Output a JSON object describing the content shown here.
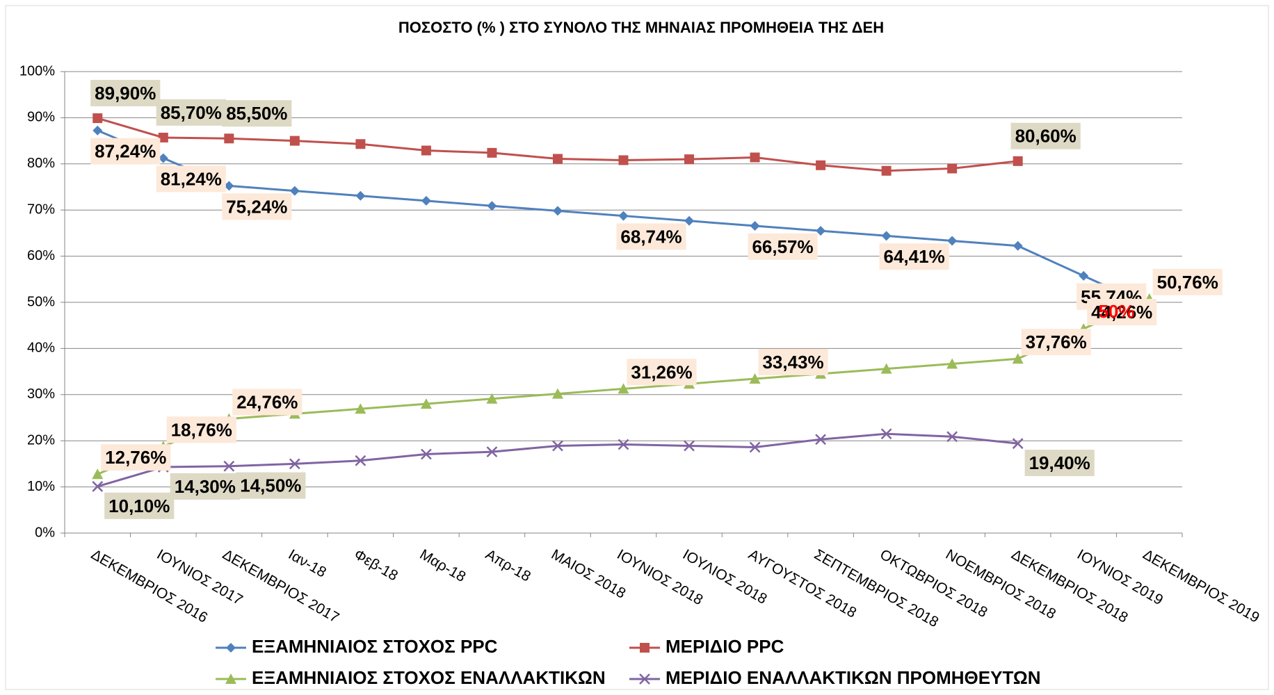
{
  "chart_data": {
    "type": "line",
    "title": "ΠΟΣΟΣΤΟ (% )  ΣΤΟ ΣΥΝΟΛΟ ΤΗΣ ΜΗΝΑΙΑΣ ΠΡΟΜΗΘΕΙΑ ΤΗΣ ΔΕΗ",
    "categories": [
      "ΔΕΚΕΜΒΡΙΟΣ 2016",
      "ΙΟΥΝΙΟΣ 2017",
      "ΔΕΚΕΜΒΡΙΟΣ 2017",
      "Ιαν-18",
      "Φεβ-18",
      "Μαρ-18",
      "Απρ-18",
      "ΜΑΙΟΣ 2018",
      "ΙΟΥΝΙΟΣ 2018",
      "ΙΟΥΛΙΟΣ 2018",
      "ΑΥΓΟΥΣΤΟΣ 2018",
      "ΣΕΠΤΕΜΒΡΙΟΣ 2018",
      "ΟΚΤΩΒΡΙΟΣ 2018",
      "ΝΟΕΜΒΡΙΟΣ 2018",
      "ΔΕΚΕΜΒΡΙΟΣ 2018",
      "ΙΟΥΝΙΟΣ 2019",
      "ΔΕΚΕΜΒΡΙΟΣ 2019"
    ],
    "series": [
      {
        "name": "ΕΞΑΜΗΝΙΑΙΟΣ ΣΤΟΧΟΣ PPC",
        "color": "#4f81bd",
        "marker": "diamond",
        "values": [
          87.24,
          81.24,
          75.24,
          74.16,
          73.08,
          72.0,
          70.9,
          69.82,
          68.74,
          67.65,
          66.57,
          65.49,
          64.41,
          63.32,
          62.24,
          55.74,
          49.24
        ],
        "value_labels": [
          "87,24%",
          "81,24%",
          "75,24%",
          null,
          null,
          null,
          null,
          null,
          "68,74%",
          null,
          "66,57%",
          null,
          "64,41%",
          null,
          null,
          "55,74%",
          null
        ]
      },
      {
        "name": "ΜΕΡΙΔΙΟ PPC",
        "color": "#c0504d",
        "marker": "square",
        "values": [
          89.9,
          85.7,
          85.5,
          85.0,
          84.3,
          82.9,
          82.4,
          81.1,
          80.8,
          81.0,
          81.4,
          79.7,
          78.5,
          79.0,
          80.6,
          null,
          null
        ],
        "value_labels": [
          "89,90%",
          "85,70%",
          "85,50%",
          null,
          null,
          null,
          null,
          null,
          null,
          null,
          null,
          null,
          null,
          null,
          "80,60%",
          null,
          null
        ]
      },
      {
        "name": "ΕΞΑΜΗΝΙΑΙΟΣ ΣΤΟΧΟΣ ΕΝΑΛΛΑΚΤΙΚΩΝ",
        "color": "#9bbb59",
        "marker": "triangle",
        "values": [
          12.76,
          18.76,
          24.76,
          25.84,
          26.92,
          28.0,
          29.1,
          30.18,
          31.26,
          32.35,
          33.43,
          34.51,
          35.59,
          36.68,
          37.76,
          44.26,
          50.76
        ],
        "value_labels": [
          "12,76%",
          "18,76%",
          "24,76%",
          null,
          null,
          null,
          null,
          null,
          "31,26%",
          null,
          "33,43%",
          null,
          null,
          null,
          "37,76%",
          "44,26%",
          "50,76%"
        ]
      },
      {
        "name": "ΜΕΡΙΔΙΟ ΕΝΑΛΛΑΚΤΙΚΩΝ ΠΡΟΜΗΘΕΥΤΩΝ",
        "color": "#8064a2",
        "marker": "x",
        "values": [
          10.1,
          14.3,
          14.5,
          15.0,
          15.7,
          17.1,
          17.6,
          18.9,
          19.2,
          18.9,
          18.6,
          20.3,
          21.5,
          20.9,
          19.4,
          null,
          null
        ],
        "value_labels": [
          "10,10%",
          "14,30%",
          "14,50%",
          null,
          null,
          null,
          null,
          null,
          null,
          null,
          null,
          null,
          null,
          null,
          "19,40%",
          null,
          null
        ]
      }
    ],
    "annotations": [
      {
        "text": "50%",
        "x": 15.5,
        "y": 49.5,
        "color": "#ff0000"
      }
    ],
    "ylim": [
      0,
      100
    ],
    "yticks": [
      {
        "value": 0,
        "label": "0%"
      },
      {
        "value": 10,
        "label": "10%"
      },
      {
        "value": 20,
        "label": "20%"
      },
      {
        "value": 30,
        "label": "30%"
      },
      {
        "value": 40,
        "label": "40%"
      },
      {
        "value": 50,
        "label": "50%"
      },
      {
        "value": 60,
        "label": "60%"
      },
      {
        "value": 70,
        "label": "70%"
      },
      {
        "value": 80,
        "label": "80%"
      },
      {
        "value": 90,
        "label": "90%"
      },
      {
        "value": 100,
        "label": "100%"
      }
    ],
    "grid": true,
    "legend": "bottom"
  }
}
